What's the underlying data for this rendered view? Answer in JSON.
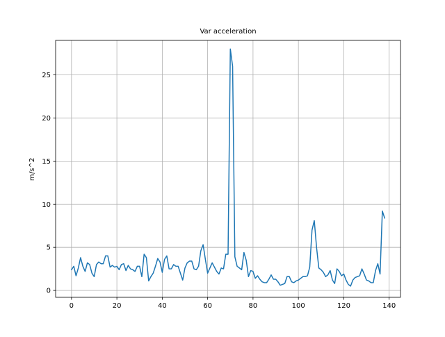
{
  "chart_data": {
    "type": "line",
    "title": "Var acceleration",
    "xlabel": "",
    "ylabel": "m/s^2",
    "xlim": [
      -7,
      145
    ],
    "ylim": [
      -0.8,
      29.0
    ],
    "xticks": [
      0,
      20,
      40,
      60,
      80,
      100,
      120,
      140
    ],
    "yticks": [
      0,
      5,
      10,
      15,
      20,
      25
    ],
    "grid": true,
    "series": [
      {
        "name": "",
        "color": "#1f77b4",
        "x": [
          0,
          1,
          2,
          3,
          4,
          5,
          6,
          7,
          8,
          9,
          10,
          11,
          12,
          13,
          14,
          15,
          16,
          17,
          18,
          19,
          20,
          21,
          22,
          23,
          24,
          25,
          26,
          27,
          28,
          29,
          30,
          31,
          32,
          33,
          34,
          35,
          36,
          37,
          38,
          39,
          40,
          41,
          42,
          43,
          44,
          45,
          46,
          47,
          48,
          49,
          50,
          51,
          52,
          53,
          54,
          55,
          56,
          57,
          58,
          59,
          60,
          61,
          62,
          63,
          64,
          65,
          66,
          67,
          68,
          69,
          70,
          71,
          72,
          73,
          74,
          75,
          76,
          77,
          78,
          79,
          80,
          81,
          82,
          83,
          84,
          85,
          86,
          87,
          88,
          89,
          90,
          91,
          92,
          93,
          94,
          95,
          96,
          97,
          98,
          99,
          100,
          101,
          102,
          103,
          104,
          105,
          106,
          107,
          108,
          109,
          110,
          111,
          112,
          113,
          114,
          115,
          116,
          117,
          118,
          119,
          120,
          121,
          122,
          123,
          124,
          125,
          126,
          127,
          128,
          129,
          130,
          131,
          132,
          133,
          134,
          135,
          136,
          137,
          138
        ],
        "values": [
          2.4,
          2.8,
          1.7,
          2.6,
          3.8,
          2.8,
          2.2,
          3.2,
          3.0,
          2.0,
          1.6,
          3.0,
          3.3,
          3.1,
          3.1,
          4.0,
          4.0,
          2.7,
          2.9,
          2.7,
          2.8,
          2.4,
          3.0,
          3.1,
          2.3,
          2.9,
          2.5,
          2.4,
          2.2,
          2.8,
          2.8,
          1.6,
          4.2,
          3.8,
          1.1,
          1.6,
          2.0,
          2.8,
          3.7,
          3.3,
          2.1,
          3.6,
          4.0,
          2.5,
          2.5,
          3.0,
          2.8,
          2.8,
          2.0,
          1.2,
          2.6,
          3.2,
          3.4,
          3.4,
          2.5,
          2.4,
          2.8,
          4.6,
          5.3,
          3.6,
          2.0,
          2.6,
          3.2,
          2.7,
          2.2,
          1.9,
          2.6,
          2.5,
          4.2,
          4.2,
          28.0,
          26.0,
          3.9,
          2.8,
          2.6,
          2.4,
          4.4,
          3.5,
          1.6,
          2.3,
          2.2,
          1.4,
          1.7,
          1.3,
          1.0,
          0.9,
          0.9,
          1.3,
          1.8,
          1.3,
          1.3,
          1.0,
          0.6,
          0.7,
          0.8,
          1.6,
          1.6,
          1.0,
          0.9,
          1.1,
          1.2,
          1.4,
          1.6,
          1.6,
          1.7,
          2.7,
          7.0,
          8.1,
          5.0,
          2.6,
          2.4,
          2.1,
          1.6,
          1.8,
          2.3,
          1.2,
          0.8,
          2.5,
          2.2,
          1.7,
          1.9,
          1.2,
          0.7,
          0.5,
          1.2,
          1.5,
          1.6,
          1.7,
          2.5,
          1.9,
          1.2,
          1.1,
          0.9,
          0.9,
          2.3,
          3.1,
          1.9,
          9.2,
          8.4
        ]
      }
    ]
  }
}
